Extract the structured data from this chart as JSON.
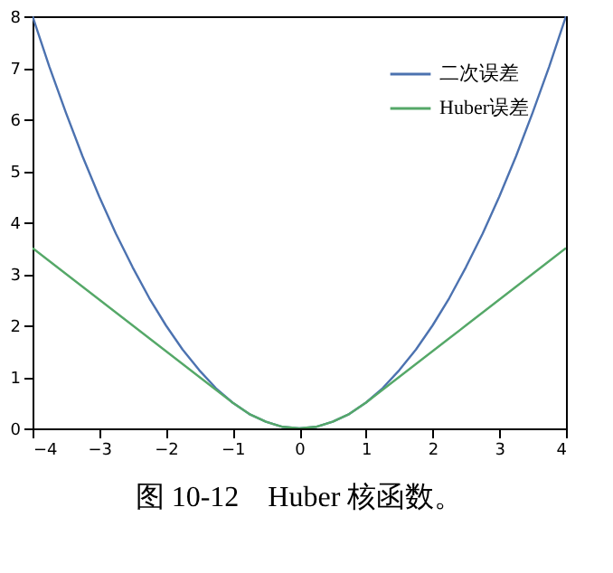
{
  "chart_data": {
    "type": "line",
    "x": [
      -4,
      -3.75,
      -3.5,
      -3.25,
      -3,
      -2.75,
      -2.5,
      -2.25,
      -2,
      -1.75,
      -1.5,
      -1.25,
      -1,
      -0.75,
      -0.5,
      -0.25,
      0,
      0.25,
      0.5,
      0.75,
      1,
      1.25,
      1.5,
      1.75,
      2,
      2.25,
      2.5,
      2.75,
      3,
      3.25,
      3.5,
      3.75,
      4
    ],
    "series": [
      {
        "name": "二次误差",
        "color": "#4c72b0",
        "values": [
          8,
          7.03,
          6.13,
          5.28,
          4.5,
          3.78,
          3.13,
          2.53,
          2,
          1.53,
          1.13,
          0.78,
          0.5,
          0.28,
          0.13,
          0.03,
          0,
          0.03,
          0.13,
          0.28,
          0.5,
          0.78,
          1.13,
          1.53,
          2,
          2.53,
          3.13,
          3.78,
          4.5,
          5.28,
          6.13,
          7.03,
          8
        ]
      },
      {
        "name": "Huber误差",
        "color": "#55a868",
        "values": [
          3.5,
          3.25,
          3,
          2.75,
          2.5,
          2.25,
          2,
          1.75,
          1.5,
          1.25,
          1,
          0.75,
          0.5,
          0.28,
          0.13,
          0.03,
          0,
          0.03,
          0.13,
          0.28,
          0.5,
          0.75,
          1,
          1.25,
          1.5,
          1.75,
          2,
          2.25,
          2.5,
          2.75,
          3,
          3.25,
          3.5
        ]
      }
    ],
    "xlim": [
      -4,
      4
    ],
    "xticks": [
      -4,
      -3,
      -2,
      -1,
      0,
      1,
      2,
      3,
      4
    ],
    "ylim": [
      0,
      8
    ],
    "yticks": [
      0,
      1,
      2,
      3,
      4,
      5,
      6,
      7,
      8
    ],
    "grid": false,
    "legend": "top right",
    "line_style": "solid",
    "marker": "none",
    "annotations": [
      "图 10-12　Huber 核函数。"
    ]
  }
}
